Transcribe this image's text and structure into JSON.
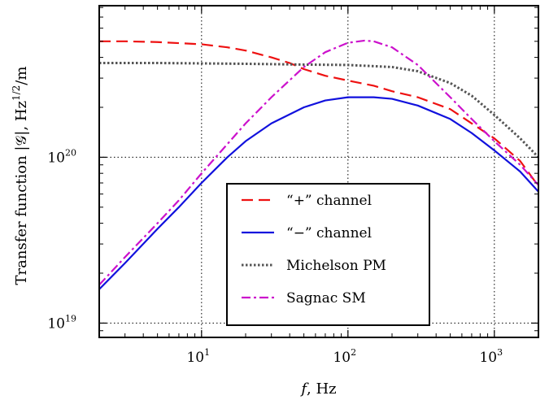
{
  "chart_data": {
    "type": "line",
    "xlabel": "f, Hz",
    "ylabel": "Transfer function |𝒢|, Hz^1/2/m",
    "xlabel_parts": {
      "var": "f",
      "unit": ", Hz"
    },
    "ylabel_parts": {
      "prefix": "Transfer function |𝒢|, Hz",
      "exp": "1/2",
      "suffix": "/m"
    },
    "xscale": "log",
    "yscale": "log",
    "xlim": [
      2,
      2000
    ],
    "ylim": [
      8.2e+18,
      8.2e+20
    ],
    "grid": true,
    "legend_position": "lower-center",
    "x_ticks": [
      {
        "value": 10,
        "base": "10",
        "exp": "1"
      },
      {
        "value": 100,
        "base": "10",
        "exp": "2"
      },
      {
        "value": 1000,
        "base": "10",
        "exp": "3"
      }
    ],
    "y_ticks": [
      {
        "value": 1e+19,
        "base": "10",
        "exp": "19"
      },
      {
        "value": 1e+20,
        "base": "10",
        "exp": "20"
      }
    ],
    "series": [
      {
        "name": "“+” channel",
        "color": "#ee1111",
        "style": "dashed",
        "points": [
          [
            2,
            5e+20
          ],
          [
            3,
            5e+20
          ],
          [
            5,
            4.95e+20
          ],
          [
            10,
            4.8e+20
          ],
          [
            15,
            4.6e+20
          ],
          [
            20,
            4.4e+20
          ],
          [
            30,
            4e+20
          ],
          [
            40,
            3.7e+20
          ],
          [
            50,
            3.4e+20
          ],
          [
            70,
            3.1e+20
          ],
          [
            100,
            2.9e+20
          ],
          [
            150,
            2.7e+20
          ],
          [
            200,
            2.5e+20
          ],
          [
            300,
            2.3e+20
          ],
          [
            500,
            1.95e+20
          ],
          [
            700,
            1.6e+20
          ],
          [
            1000,
            1.3e+20
          ],
          [
            1500,
            9.5e+19
          ],
          [
            2000,
            6.7e+19
          ]
        ]
      },
      {
        "name": "“−” channel",
        "color": "#1111dd",
        "style": "solid",
        "points": [
          [
            2,
            1.6e+19
          ],
          [
            3,
            2.3e+19
          ],
          [
            5,
            3.7e+19
          ],
          [
            7,
            5e+19
          ],
          [
            10,
            7e+19
          ],
          [
            15,
            1e+20
          ],
          [
            20,
            1.25e+20
          ],
          [
            30,
            1.6e+20
          ],
          [
            50,
            2e+20
          ],
          [
            70,
            2.2e+20
          ],
          [
            100,
            2.3e+20
          ],
          [
            150,
            2.3e+20
          ],
          [
            200,
            2.25e+20
          ],
          [
            300,
            2.05e+20
          ],
          [
            500,
            1.7e+20
          ],
          [
            700,
            1.4e+20
          ],
          [
            1000,
            1.1e+20
          ],
          [
            1500,
            8.2e+19
          ],
          [
            2000,
            6.2e+19
          ]
        ]
      },
      {
        "name": "Michelson PM",
        "color": "#555555",
        "style": "dotted",
        "points": [
          [
            2,
            3.7e+20
          ],
          [
            5,
            3.7e+20
          ],
          [
            10,
            3.68e+20
          ],
          [
            20,
            3.66e+20
          ],
          [
            50,
            3.62e+20
          ],
          [
            100,
            3.6e+20
          ],
          [
            200,
            3.5e+20
          ],
          [
            300,
            3.3e+20
          ],
          [
            500,
            2.8e+20
          ],
          [
            700,
            2.35e+20
          ],
          [
            1000,
            1.8e+20
          ],
          [
            1500,
            1.3e+20
          ],
          [
            2000,
            1e+20
          ]
        ]
      },
      {
        "name": "Sagnac SM",
        "color": "#cc11cc",
        "style": "dashdot",
        "points": [
          [
            2,
            1.7e+19
          ],
          [
            3,
            2.5e+19
          ],
          [
            5,
            4e+19
          ],
          [
            7,
            5.5e+19
          ],
          [
            10,
            8e+19
          ],
          [
            15,
            1.2e+20
          ],
          [
            20,
            1.6e+20
          ],
          [
            30,
            2.3e+20
          ],
          [
            50,
            3.5e+20
          ],
          [
            70,
            4.3e+20
          ],
          [
            100,
            4.9e+20
          ],
          [
            130,
            5.05e+20
          ],
          [
            150,
            5e+20
          ],
          [
            200,
            4.6e+20
          ],
          [
            300,
            3.6e+20
          ],
          [
            500,
            2.3e+20
          ],
          [
            700,
            1.7e+20
          ],
          [
            1000,
            1.25e+20
          ],
          [
            1500,
            9e+19
          ],
          [
            2000,
            6.8e+19
          ]
        ]
      }
    ]
  }
}
